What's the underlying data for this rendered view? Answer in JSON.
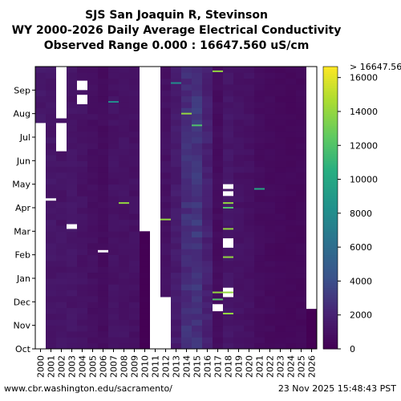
{
  "title_lines": [
    "SJS San Joaquin R, Stevinson",
    "WY 2000-2026 Daily Average Electrical Conductivity",
    "Observed Range 0.000 : 16647.560 uS/cm"
  ],
  "footer": {
    "source_url": "www.cbr.washington.edu/sacramento/",
    "timestamp": "23 Nov 2025 15:48:43 PST"
  },
  "chart_data": {
    "type": "heatmap",
    "x": [
      "2000",
      "2001",
      "2002",
      "2003",
      "2004",
      "2005",
      "2006",
      "2007",
      "2008",
      "2009",
      "2010",
      "2011",
      "2012",
      "2013",
      "2014",
      "2015",
      "2016",
      "2017",
      "2018",
      "2019",
      "2020",
      "2021",
      "2022",
      "2023",
      "2024",
      "2025",
      "2026"
    ],
    "y_months": [
      "Oct",
      "Nov",
      "Dec",
      "Jan",
      "Feb",
      "Mar",
      "Apr",
      "May",
      "Jun",
      "Jul",
      "Aug",
      "Sep"
    ],
    "colorbar": {
      "min": 0,
      "max": 16647.56,
      "ticks": [
        "0",
        "2000",
        "4000",
        "6000",
        "8000",
        "10000",
        "12000",
        "14000",
        "16000"
      ],
      "top_label": "> 16647.56"
    },
    "typical_values_by_year": [
      1400,
      1300,
      1200,
      1250,
      1100,
      900,
      700,
      1100,
      1100,
      1000,
      0,
      0,
      1000,
      1600,
      2600,
      2900,
      2000,
      700,
      1300,
      1100,
      1000,
      700,
      600,
      500,
      500,
      500,
      0
    ],
    "no_data": [
      {
        "year": "2000",
        "from_month": 0,
        "to_month": 9.6
      },
      {
        "year": "2002",
        "from_month": 9.8,
        "to_month": 12
      },
      {
        "year": "2002",
        "from_month": 8.4,
        "to_month": 9.6
      },
      {
        "year": "2004",
        "from_month": 10.4,
        "to_month": 10.8
      },
      {
        "year": "2004",
        "from_month": 11.0,
        "to_month": 11.4
      },
      {
        "year": "2010",
        "from_month": 5.0,
        "to_month": 12
      },
      {
        "year": "2011",
        "from_month": 0,
        "to_month": 12
      },
      {
        "year": "2012",
        "from_month": 0,
        "to_month": 2.2
      },
      {
        "year": "2003",
        "from_month": 5.1,
        "to_month": 5.3
      },
      {
        "year": "2001",
        "from_month": 6.3,
        "to_month": 6.4
      },
      {
        "year": "2006",
        "from_month": 4.1,
        "to_month": 4.2
      },
      {
        "year": "2017",
        "from_month": 1.6,
        "to_month": 1.9
      },
      {
        "year": "2018",
        "from_month": 2.2,
        "to_month": 2.6
      },
      {
        "year": "2018",
        "from_month": 4.3,
        "to_month": 4.7
      },
      {
        "year": "2018",
        "from_month": 6.5,
        "to_month": 6.7
      },
      {
        "year": "2018",
        "from_month": 6.8,
        "to_month": 7.0
      },
      {
        "year": "2026",
        "from_month": 1.7,
        "to_month": 12
      }
    ],
    "highlights": [
      {
        "year": "2021",
        "month": 6.8,
        "value": 10000
      },
      {
        "year": "2018",
        "month": 6.2,
        "value": 14000
      },
      {
        "year": "2018",
        "month": 6.0,
        "value": 12000
      },
      {
        "year": "2018",
        "month": 2.4,
        "value": 14000
      },
      {
        "year": "2017",
        "month": 2.4,
        "value": 14000
      },
      {
        "year": "2017",
        "month": 2.1,
        "value": 12000
      },
      {
        "year": "2014",
        "month": 10.0,
        "value": 14000
      },
      {
        "year": "2015",
        "month": 9.5,
        "value": 12000
      },
      {
        "year": "2012",
        "month": 5.5,
        "value": 14000
      },
      {
        "year": "2013",
        "month": 11.3,
        "value": 8000
      },
      {
        "year": "2008",
        "month": 6.2,
        "value": 14000
      },
      {
        "year": "2007",
        "month": 10.5,
        "value": 8000
      },
      {
        "year": "2017",
        "month": 11.8,
        "value": 14000
      },
      {
        "year": "2018",
        "month": 5.1,
        "value": 14000
      },
      {
        "year": "2018",
        "month": 3.9,
        "value": 14000
      },
      {
        "year": "2018",
        "month": 1.5,
        "value": 14000
      }
    ]
  }
}
